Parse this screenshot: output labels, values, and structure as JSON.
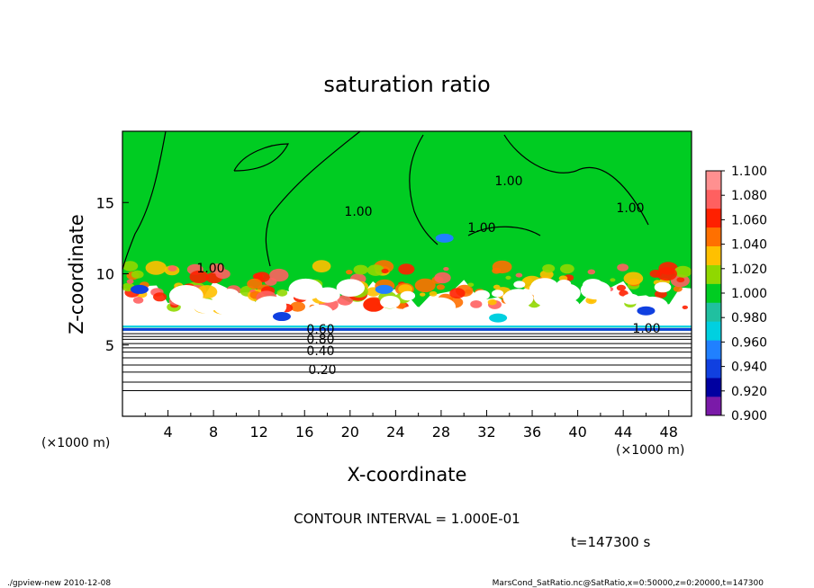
{
  "chart_data": {
    "type": "heatmap",
    "title": "saturation ratio",
    "xlabel": "X-coordinate",
    "ylabel": "Z-coordinate",
    "x_unit": "(×1000 m)",
    "z_unit": "(×1000 m)",
    "xlim": [
      0,
      50
    ],
    "ylim": [
      0,
      20
    ],
    "x_ticks": [
      "4",
      "8",
      "12",
      "16",
      "20",
      "24",
      "28",
      "32",
      "36",
      "40",
      "44",
      "48"
    ],
    "y_ticks": [
      "5",
      "10",
      "15"
    ],
    "colorbar": {
      "levels": [
        "1.100",
        "1.080",
        "1.060",
        "1.040",
        "1.020",
        "1.000",
        "0.980",
        "0.960",
        "0.940",
        "0.920",
        "0.900"
      ],
      "colors": [
        "#7a1aa8",
        "#0000a0",
        "#1040e0",
        "#2080ff",
        "#00d0e0",
        "#20c0a0",
        "#00cc22",
        "#90d800",
        "#ffc000",
        "#ff7000",
        "#ff2000",
        "#ff6060",
        "#ff9090"
      ]
    },
    "contour_labels": [
      "1.00",
      "1.00",
      "1.00",
      "1.00",
      "1.00",
      "1.00",
      "0.80",
      "0.60",
      "0.40",
      "0.20"
    ],
    "contour_interval": "CONTOUR INTERVAL = 1.000E-01",
    "time": "t=147300  s",
    "grid": false
  },
  "footer": {
    "left": "./gpview-new  2010-12-08",
    "right": "MarsCond_SatRatio.nc@SatRatio,x=0:50000,z=0:20000,t=147300"
  }
}
